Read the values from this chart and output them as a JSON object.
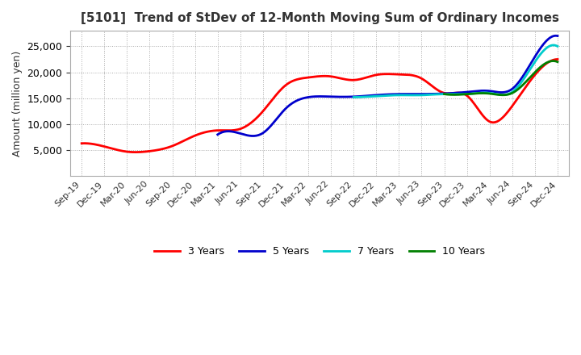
{
  "title": "[5101]  Trend of StDev of 12-Month Moving Sum of Ordinary Incomes",
  "ylabel": "Amount (million yen)",
  "background_color": "#ffffff",
  "grid_color": "#aaaaaa",
  "series": {
    "3 Years": {
      "color": "#ff0000",
      "x": [
        0,
        1,
        2,
        3,
        4,
        5,
        6,
        7,
        8,
        9,
        10,
        11,
        12,
        13,
        14,
        15,
        16,
        17,
        18,
        19,
        20,
        21
      ],
      "y": [
        6300,
        5700,
        4700,
        4800,
        5800,
        7800,
        8800,
        9100,
        12500,
        17500,
        19000,
        19200,
        18500,
        19500,
        19600,
        18800,
        16000,
        15500,
        10500,
        13500,
        19500,
        22500
      ]
    },
    "5 Years": {
      "color": "#0000cc",
      "x": [
        6,
        7,
        8,
        9,
        10,
        11,
        12,
        13,
        14,
        15,
        16,
        17,
        18,
        19,
        20,
        21
      ],
      "y": [
        8000,
        8200,
        8300,
        13000,
        15200,
        15300,
        15300,
        15600,
        15800,
        15800,
        15900,
        16200,
        16400,
        16800,
        23000,
        27000
      ]
    },
    "7 Years": {
      "color": "#00cccc",
      "x": [
        12,
        13,
        14,
        15,
        16,
        17,
        18,
        19,
        20,
        21
      ],
      "y": [
        15200,
        15400,
        15600,
        15600,
        15800,
        15800,
        16000,
        16200,
        22000,
        25000
      ]
    },
    "10 Years": {
      "color": "#008000",
      "x": [
        16,
        17,
        18,
        19,
        20,
        21
      ],
      "y": [
        15800,
        15800,
        15900,
        16000,
        20000,
        22000
      ]
    }
  },
  "xtick_labels": [
    "Sep-19",
    "Dec-19",
    "Mar-20",
    "Jun-20",
    "Sep-20",
    "Dec-20",
    "Mar-21",
    "Jun-21",
    "Sep-21",
    "Dec-21",
    "Mar-22",
    "Jun-22",
    "Sep-22",
    "Dec-22",
    "Mar-23",
    "Jun-23",
    "Sep-23",
    "Dec-23",
    "Mar-24",
    "Jun-24",
    "Sep-24",
    "Dec-24"
  ],
  "ylim": [
    0,
    28000
  ],
  "yticks": [
    5000,
    10000,
    15000,
    20000,
    25000
  ]
}
